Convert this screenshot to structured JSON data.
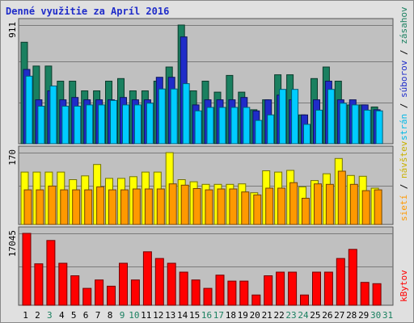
{
  "title": "Denné využitie za Apríl 2016",
  "chart_data": {
    "type": "bar",
    "title": "Denné využitie za Apríl 2016",
    "x": [
      "1",
      "2",
      "3",
      "4",
      "5",
      "6",
      "7",
      "8",
      "9",
      "10",
      "11",
      "12",
      "13",
      "14",
      "15",
      "16",
      "17",
      "18",
      "19",
      "20",
      "21",
      "22",
      "23",
      "24",
      "25",
      "26",
      "27",
      "28",
      "29",
      "30",
      "31"
    ],
    "x_label_colors": [
      "#000000",
      "#000000",
      "#1a8060",
      "#000000",
      "#000000",
      "#000000",
      "#000000",
      "#000000",
      "#1a8060",
      "#1a8060",
      "#000000",
      "#000000",
      "#000000",
      "#000000",
      "#000000",
      "#1a8060",
      "#1a8060",
      "#000000",
      "#000000",
      "#000000",
      "#000000",
      "#000000",
      "#1a8060",
      "#1a8060",
      "#000000",
      "#000000",
      "#000000",
      "#000000",
      "#000000",
      "#1a8060",
      "#1a8060"
    ],
    "panels": [
      {
        "id": "top",
        "ymax_label": "911",
        "ymax": 911,
        "series": [
          {
            "name": "zásahov",
            "color": "#1a8060",
            "values": [
              779,
              596,
              596,
              480,
              480,
              406,
              406,
              480,
              500,
              406,
              406,
              480,
              589,
              911,
              406,
              480,
              396,
              524,
              396,
              261,
              337,
              529,
              529,
              221,
              500,
              589,
              480,
              298,
              298,
              282,
              0
            ]
          },
          {
            "name": "súborov",
            "color": "#1f2cc9",
            "values": [
              570,
              337,
              406,
              337,
              355,
              337,
              337,
              337,
              355,
              337,
              337,
              510,
              510,
              820,
              298,
              337,
              337,
              337,
              355,
              252,
              337,
              373,
              337,
              221,
              337,
              480,
              337,
              337,
              298,
              261,
              0
            ]
          },
          {
            "name": "strán",
            "color": "#00ccff",
            "values": [
              519,
              288,
              443,
              288,
              288,
              298,
              298,
              332,
              298,
              298,
              311,
              420,
              420,
              461,
              252,
              279,
              279,
              279,
              279,
              179,
              221,
              417,
              417,
              149,
              258,
              417,
              311,
              298,
              258,
              252,
              0
            ]
          }
        ]
      },
      {
        "id": "mid",
        "ymax_label": "170",
        "ymax": 170,
        "series": [
          {
            "name": "návštev",
            "color": "#ffff00",
            "values": [
              124,
              124,
              124,
              124,
              106,
              115,
              142,
              109,
              109,
              113,
              124,
              124,
              170,
              106,
              101,
              95,
              95,
              95,
              96,
              75,
              127,
              124,
              128,
              89,
              104,
              120,
              156,
              116,
              114,
              86,
              0
            ]
          },
          {
            "name": "sietí",
            "color": "#ff9900",
            "values": [
              82,
              82,
              91,
              82,
              82,
              82,
              89,
              82,
              82,
              84,
              84,
              84,
              96,
              93,
              85,
              82,
              84,
              84,
              77,
              70,
              86,
              86,
              99,
              62,
              96,
              95,
              126,
              95,
              80,
              82,
              0
            ]
          }
        ]
      },
      {
        "id": "bot",
        "ymax_label": "17045",
        "ymax": 17045,
        "series": [
          {
            "name": "kBytov",
            "color": "#ff0000",
            "values": [
              17045,
              9818,
              15360,
              9962,
              6997,
              4010,
              5987,
              4521,
              9962,
              5987,
              12671,
              11096,
              9962,
              7852,
              5987,
              4010,
              7150,
              5730,
              5730,
              2436,
              6997,
              7852,
              7852,
              2436,
              7852,
              7852,
              11096,
              13244,
              5420,
              5111,
              0
            ]
          }
        ]
      }
    ],
    "legend_placement": "right, vertical per panel",
    "grid": true
  }
}
